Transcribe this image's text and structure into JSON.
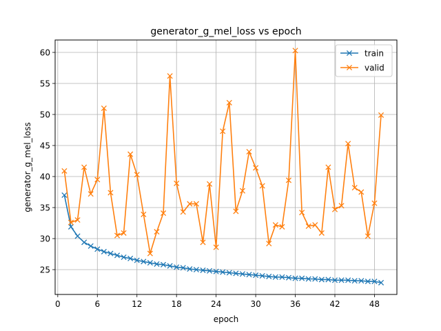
{
  "chart_data": {
    "type": "line",
    "title": "generator_g_mel_loss vs epoch",
    "xlabel": "epoch",
    "ylabel": "generator_g_mel_loss",
    "xlim": [
      -0.4,
      51.4
    ],
    "ylim": [
      21.0,
      62.0
    ],
    "xticks": [
      0,
      6,
      12,
      18,
      24,
      30,
      36,
      42,
      48
    ],
    "yticks": [
      25,
      30,
      35,
      40,
      45,
      50,
      55,
      60
    ],
    "grid": true,
    "legend_position": "top-right",
    "x": [
      1,
      2,
      3,
      4,
      5,
      6,
      7,
      8,
      9,
      10,
      11,
      12,
      13,
      14,
      15,
      16,
      17,
      18,
      19,
      20,
      21,
      22,
      23,
      24,
      25,
      26,
      27,
      28,
      29,
      30,
      31,
      32,
      33,
      34,
      35,
      36,
      37,
      38,
      39,
      40,
      41,
      42,
      43,
      44,
      45,
      46,
      47,
      48,
      49
    ],
    "series": [
      {
        "name": "train",
        "color": "#1f77b4",
        "marker": "x",
        "values": [
          37.0,
          31.9,
          30.4,
          29.4,
          28.8,
          28.3,
          27.9,
          27.6,
          27.3,
          27.0,
          26.8,
          26.5,
          26.3,
          26.1,
          25.9,
          25.8,
          25.6,
          25.4,
          25.3,
          25.1,
          25.0,
          24.9,
          24.8,
          24.7,
          24.6,
          24.5,
          24.4,
          24.3,
          24.2,
          24.1,
          24.0,
          23.9,
          23.8,
          23.8,
          23.7,
          23.6,
          23.6,
          23.5,
          23.5,
          23.4,
          23.4,
          23.3,
          23.3,
          23.3,
          23.2,
          23.2,
          23.1,
          23.1,
          22.9
        ]
      },
      {
        "name": "valid",
        "color": "#ff7f0e",
        "marker": "x",
        "values": [
          40.9,
          32.6,
          33.0,
          41.5,
          37.2,
          39.5,
          51.0,
          37.4,
          30.5,
          30.9,
          43.6,
          40.3,
          33.9,
          27.6,
          31.1,
          34.1,
          56.2,
          38.9,
          34.3,
          35.6,
          35.6,
          29.4,
          38.8,
          28.6,
          47.3,
          51.9,
          34.4,
          37.7,
          44.0,
          41.4,
          38.5,
          29.2,
          32.2,
          31.9,
          39.4,
          60.3,
          34.2,
          32.0,
          32.2,
          30.9,
          41.5,
          34.7,
          35.3,
          45.3,
          38.2,
          37.5,
          30.4,
          35.7,
          49.9
        ]
      }
    ]
  }
}
